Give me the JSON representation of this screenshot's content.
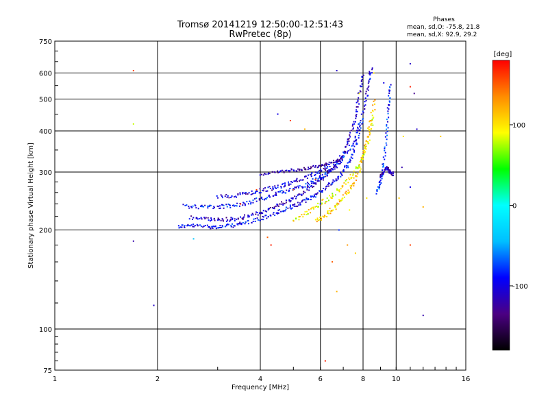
{
  "chart_data": {
    "type": "scatter",
    "title": "Tromsø 20141219 12:50:00-12:51:43",
    "subtitle": "RwPretec (8p)",
    "phases_heading": "Phases",
    "stats_o": "mean, sd,O: -75.8, 21.8",
    "stats_x": "mean, sd,X:  92.9, 29.2",
    "xlabel": "Frequency [MHz]",
    "ylabel": "Stationary phase Virtual Height [km]",
    "x_scale": "log",
    "y_scale": "log",
    "xlim": [
      1,
      16
    ],
    "ylim": [
      75,
      750
    ],
    "grid": true,
    "x_ticks": [
      {
        "value": 1,
        "label": "1"
      },
      {
        "value": 2,
        "label": "2"
      },
      {
        "value": 4,
        "label": "4"
      },
      {
        "value": 6,
        "label": "6"
      },
      {
        "value": 8,
        "label": "8"
      },
      {
        "value": 10,
        "label": "10"
      },
      {
        "value": 16,
        "label": "16"
      }
    ],
    "y_ticks": [
      {
        "value": 75,
        "label": "75"
      },
      {
        "value": 100,
        "label": "100"
      },
      {
        "value": 200,
        "label": "200"
      },
      {
        "value": 300,
        "label": "300"
      },
      {
        "value": 400,
        "label": "400"
      },
      {
        "value": 500,
        "label": "500"
      },
      {
        "value": 600,
        "label": "600"
      },
      {
        "value": 750,
        "label": "750"
      }
    ],
    "colorbar": {
      "label": "[deg]",
      "min": -180,
      "max": 180,
      "ticks": [
        {
          "value": 100,
          "label": "100"
        },
        {
          "value": 0,
          "label": "0"
        },
        {
          "value": -100,
          "label": "-100"
        }
      ],
      "colormap": [
        "#000000",
        "#4b0082",
        "#0000ff",
        "#00bfff",
        "#00ffff",
        "#00ff00",
        "#ffff00",
        "#ff8c00",
        "#ff0000"
      ]
    },
    "traces": [
      {
        "name": "",
        "phase": -95,
        "spread": 4,
        "points": [
          [
            2.3,
            205
          ],
          [
            2.5,
            206
          ],
          [
            2.8,
            205
          ],
          [
            3.0,
            204
          ],
          [
            3.3,
            206
          ],
          [
            3.6,
            210
          ],
          [
            4.0,
            216
          ],
          [
            4.4,
            224
          ],
          [
            4.8,
            232
          ],
          [
            5.2,
            240
          ],
          [
            5.6,
            250
          ],
          [
            6.0,
            262
          ],
          [
            6.4,
            275
          ],
          [
            6.8,
            290
          ],
          [
            7.2,
            315
          ],
          [
            7.5,
            345
          ],
          [
            7.8,
            400
          ],
          [
            8.1,
            470
          ],
          [
            8.3,
            560
          ],
          [
            8.5,
            620
          ]
        ]
      },
      {
        "name": "",
        "phase": -110,
        "spread": 4,
        "points": [
          [
            2.5,
            218
          ],
          [
            2.8,
            216
          ],
          [
            3.1,
            215
          ],
          [
            3.4,
            216
          ],
          [
            3.8,
            222
          ],
          [
            4.2,
            230
          ],
          [
            4.6,
            240
          ],
          [
            5.0,
            250
          ],
          [
            5.4,
            262
          ],
          [
            5.8,
            276
          ],
          [
            6.2,
            292
          ],
          [
            6.6,
            312
          ],
          [
            7.0,
            340
          ],
          [
            7.3,
            380
          ],
          [
            7.6,
            440
          ],
          [
            7.8,
            520
          ],
          [
            8.0,
            600
          ]
        ]
      },
      {
        "name": "",
        "phase": -90,
        "spread": 4,
        "points": [
          [
            2.4,
            236
          ],
          [
            2.7,
            235
          ],
          [
            3.0,
            235
          ],
          [
            3.3,
            237
          ],
          [
            3.7,
            242
          ],
          [
            4.1,
            250
          ],
          [
            4.5,
            258
          ],
          [
            5.0,
            266
          ],
          [
            5.5,
            276
          ],
          [
            6.0,
            290
          ],
          [
            6.5,
            305
          ],
          [
            7.0,
            330
          ],
          [
            7.5,
            370
          ],
          [
            7.9,
            430
          ]
        ]
      },
      {
        "name": "",
        "phase": -105,
        "spread": 4,
        "points": [
          [
            3.0,
            252
          ],
          [
            3.4,
            255
          ],
          [
            3.8,
            260
          ],
          [
            4.2,
            266
          ],
          [
            4.6,
            272
          ],
          [
            5.0,
            280
          ],
          [
            5.5,
            290
          ],
          [
            6.0,
            302
          ],
          [
            6.5,
            318
          ]
        ]
      },
      {
        "name": "",
        "phase": -120,
        "spread": 3,
        "points": [
          [
            4.0,
            296
          ],
          [
            4.5,
            300
          ],
          [
            5.0,
            304
          ],
          [
            5.5,
            308
          ],
          [
            6.0,
            314
          ],
          [
            6.5,
            322
          ],
          [
            7.0,
            330
          ]
        ]
      },
      {
        "name": "",
        "phase": 95,
        "spread": 5,
        "points": [
          [
            5.0,
            215
          ],
          [
            5.5,
            226
          ],
          [
            6.0,
            240
          ],
          [
            6.5,
            256
          ],
          [
            7.0,
            274
          ],
          [
            7.5,
            296
          ],
          [
            8.0,
            330
          ],
          [
            8.3,
            380
          ],
          [
            8.6,
            440
          ]
        ]
      },
      {
        "name": "",
        "phase": 110,
        "spread": 5,
        "points": [
          [
            5.8,
            212
          ],
          [
            6.2,
            222
          ],
          [
            6.6,
            234
          ],
          [
            7.0,
            250
          ],
          [
            7.4,
            270
          ],
          [
            7.8,
            300
          ],
          [
            8.1,
            350
          ],
          [
            8.4,
            420
          ],
          [
            8.7,
            500
          ]
        ]
      },
      {
        "name": "",
        "phase": -85,
        "spread": 3,
        "points": [
          [
            8.8,
            260
          ],
          [
            9.0,
            280
          ],
          [
            9.2,
            320
          ],
          [
            9.4,
            400
          ],
          [
            9.5,
            480
          ],
          [
            9.6,
            560
          ]
        ]
      },
      {
        "name": "",
        "phase": -115,
        "spread": 3,
        "points": [
          [
            9.0,
            290
          ],
          [
            9.2,
            300
          ],
          [
            9.4,
            310
          ],
          [
            9.6,
            300
          ],
          [
            9.8,
            295
          ]
        ]
      }
    ],
    "scatter_points": [
      [
        1.7,
        610,
        160
      ],
      [
        1.7,
        420,
        80
      ],
      [
        1.7,
        185,
        -120
      ],
      [
        1.95,
        118,
        -110
      ],
      [
        2.55,
        188,
        -40
      ],
      [
        4.2,
        190,
        150
      ],
      [
        4.3,
        180,
        170
      ],
      [
        4.5,
        450,
        -100
      ],
      [
        4.9,
        430,
        160
      ],
      [
        5.4,
        405,
        120
      ],
      [
        6.2,
        80,
        170
      ],
      [
        6.5,
        160,
        150
      ],
      [
        6.7,
        130,
        120
      ],
      [
        6.7,
        610,
        -110
      ],
      [
        7.6,
        170,
        110
      ],
      [
        10.4,
        310,
        -120
      ],
      [
        11.0,
        640,
        -110
      ],
      [
        11.0,
        545,
        170
      ],
      [
        11.0,
        180,
        160
      ],
      [
        11.3,
        520,
        -130
      ],
      [
        11.5,
        405,
        -110
      ],
      [
        12.0,
        110,
        -120
      ],
      [
        12.0,
        235,
        120
      ],
      [
        13.5,
        385,
        110
      ],
      [
        11.0,
        270,
        -100
      ],
      [
        10.5,
        385,
        100
      ],
      [
        9.8,
        300,
        -120
      ],
      [
        10.2,
        250,
        110
      ],
      [
        6.8,
        200,
        -80
      ],
      [
        7.2,
        180,
        130
      ],
      [
        5.8,
        285,
        160
      ],
      [
        5.0,
        265,
        150
      ],
      [
        3.5,
        240,
        170
      ],
      [
        3.9,
        265,
        160
      ],
      [
        6.0,
        240,
        -90
      ],
      [
        7.3,
        230,
        90
      ],
      [
        8.2,
        250,
        100
      ],
      [
        8.6,
        600,
        100
      ],
      [
        9.2,
        560,
        -100
      ],
      [
        7.8,
        520,
        90
      ]
    ]
  }
}
